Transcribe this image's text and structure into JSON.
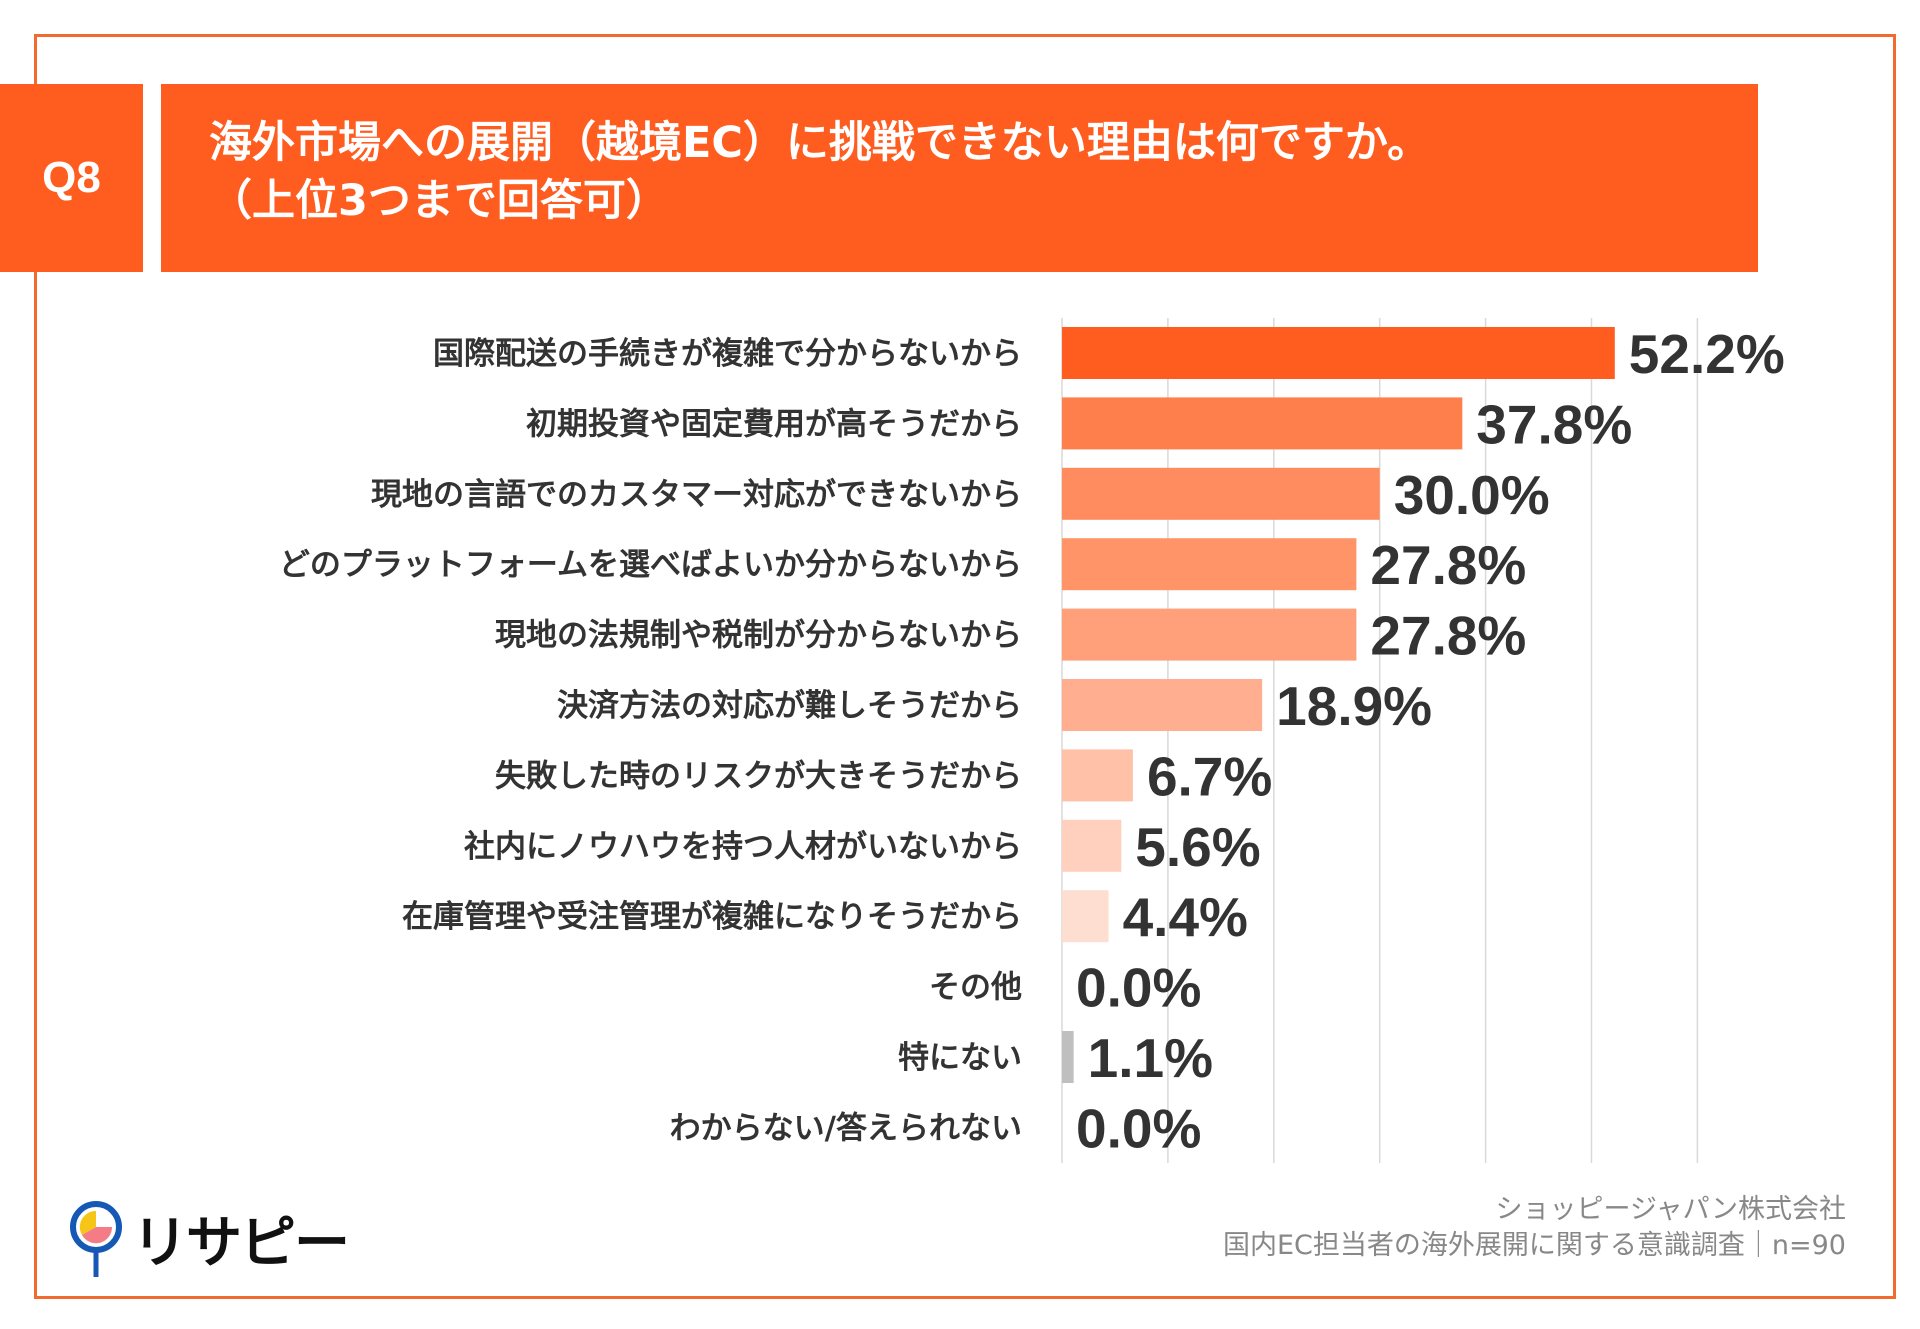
{
  "header": {
    "question_no": "Q8",
    "title_line1": "海外市場への展開（越境EC）に挑戦できない理由は何ですか。",
    "title_line2": "（上位3つまで回答可）"
  },
  "colors": {
    "accent": "#FF5C1F",
    "border": "#F26A2E",
    "other_bar": "#BFBFBF"
  },
  "chart_data": {
    "type": "bar",
    "orientation": "horizontal",
    "categories": [
      "国際配送の手続きが複雑で分からないから",
      "初期投資や固定費用が高そうだから",
      "現地の言語でのカスタマー対応ができないから",
      "どのプラットフォームを選べばよいか分からないから",
      "現地の法規制や税制が分からないから",
      "決済方法の対応が難しそうだから",
      "失敗した時のリスクが大きそうだから",
      "社内にノウハウを持つ人材がいないから",
      "在庫管理や受注管理が複雑になりそうだから",
      "その他",
      "特にない",
      "わからない/答えられない"
    ],
    "values": [
      52.2,
      37.8,
      30.0,
      27.8,
      27.8,
      18.9,
      6.7,
      5.6,
      4.4,
      0.0,
      1.1,
      0.0
    ],
    "value_labels": [
      "52.2%",
      "37.8%",
      "30.0%",
      "27.8%",
      "27.8%",
      "18.9%",
      "6.7%",
      "5.6%",
      "4.4%",
      "0.0%",
      "1.1%",
      "0.0%"
    ],
    "bar_colors": [
      "#FF5C1F",
      "#FF7F4C",
      "#FF8C5F",
      "#FF9468",
      "#FFA07A",
      "#FFAF8F",
      "#FFC1A8",
      "#FFD0BD",
      "#FFDED2",
      "#FFDED2",
      "#BFBFBF",
      "#BFBFBF"
    ],
    "xlim": [
      0,
      60
    ],
    "grid": true,
    "legend": "none"
  },
  "footer": {
    "company": "ショッピージャパン株式会社",
    "survey": "国内EC担当者の海外展開に関する意識調査｜n=90"
  },
  "logo": {
    "text": "リサピー"
  }
}
